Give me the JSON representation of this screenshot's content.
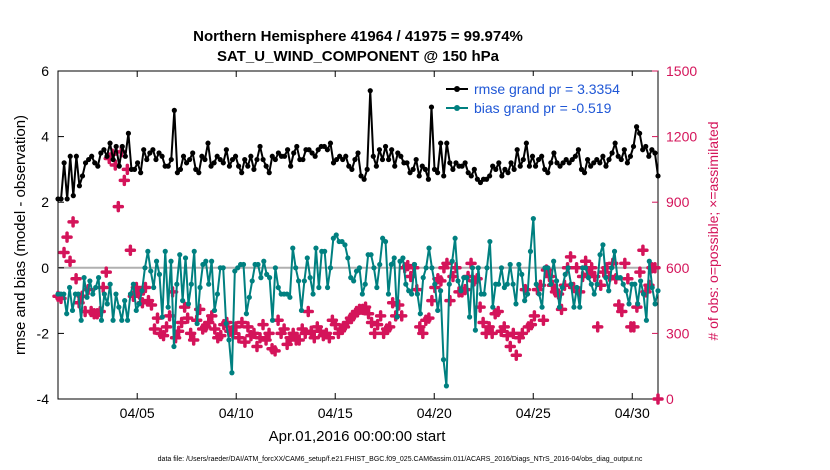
{
  "chart_data": {
    "type": "line",
    "title": "Northern Hemisphere 41964 / 41975 = 99.974%",
    "subtitle": "SAT_U_WIND_COMPONENT @ 150 hPa",
    "xlabel": "Apr.01,2016 00:00:00 start",
    "ylabel": "rmse and bias (model - observation)",
    "y2label": "# of obs: o=possible; ×=assimilated",
    "footer": "data file: /Users/raeder/DAI/ATM_forcXX/CAM6_setup/f.e21.FHIST_BGC.f09_025.CAM6assim.011/ACARS_2016/Diags_NTrS_2016-04/obs_diag_output.nc",
    "xlim": [
      1,
      31.3
    ],
    "ylim": [
      -4,
      6
    ],
    "y2lim": [
      0,
      1500
    ],
    "xticks": [
      5,
      10,
      15,
      20,
      25,
      30
    ],
    "xtick_labels": [
      "04/05",
      "04/10",
      "04/15",
      "04/20",
      "04/25",
      "04/30"
    ],
    "yticks": [
      -4,
      -2,
      0,
      2,
      4,
      6
    ],
    "ytick_labels": [
      "-4",
      "-2",
      "0",
      "2",
      "4",
      "6"
    ],
    "y2ticks": [
      0,
      300,
      600,
      900,
      1200,
      1500
    ],
    "y2tick_labels": [
      "0",
      "300",
      "600",
      "900",
      "1200",
      "1500"
    ],
    "series": [
      {
        "name": "rmse",
        "legend": "rmse grand pr = 3.3354",
        "color": "#000000",
        "values": [
          2.1,
          2.1,
          3.2,
          2.1,
          3.4,
          2.2,
          3.4,
          2.5,
          2.8,
          3.2,
          3.3,
          3.4,
          3.2,
          3.1,
          3.5,
          3.6,
          3.4,
          3.8,
          3.3,
          3.7,
          3.1,
          3.7,
          3.4,
          4.1,
          3.0,
          3.0,
          3.2,
          2.9,
          3.6,
          3.3,
          3.5,
          3.6,
          3.3,
          3.5,
          3.4,
          3.1,
          3.1,
          3.3,
          4.8,
          2.9,
          3.0,
          3.4,
          3.2,
          3.3,
          3.5,
          3.0,
          2.9,
          3.4,
          3.3,
          3.8,
          3.1,
          3.2,
          3.4,
          3.3,
          3.2,
          3.6,
          3.1,
          3.3,
          3.4,
          3.1,
          2.9,
          3.3,
          3.1,
          3.4,
          3.0,
          3.3,
          3.7,
          3.3,
          3.1,
          2.9,
          3.4,
          3.3,
          3.5,
          3.4,
          3.4,
          3.6,
          3.1,
          3.5,
          3.7,
          3.3,
          3.3,
          3.6,
          3.6,
          3.5,
          3.4,
          3.6,
          3.7,
          3.7,
          3.6,
          3.8,
          3.2,
          3.3,
          3.4,
          3.3,
          3.4,
          3.1,
          3.0,
          3.3,
          3.5,
          2.8,
          2.7,
          3.0,
          5.4,
          3.4,
          3.1,
          3.6,
          3.3,
          3.7,
          3.3,
          3.6,
          3.1,
          3.5,
          3.4,
          3.2,
          3.2,
          2.9,
          3.0,
          3.3,
          2.8,
          3.1,
          3.0,
          2.7,
          4.9,
          3.0,
          2.9,
          3.8,
          2.8,
          3.8,
          3.2,
          3.0,
          3.2,
          3.1,
          3.1,
          3.2,
          2.9,
          2.8,
          3.0,
          2.7,
          2.6,
          2.7,
          2.7,
          2.8,
          3.1,
          3.0,
          3.2,
          2.8,
          3.0,
          2.9,
          3.2,
          3.0,
          3.6,
          3.1,
          3.3,
          3.8,
          3.1,
          3.4,
          3.1,
          3.3,
          3.4,
          3.0,
          2.9,
          3.2,
          3.5,
          3.2,
          3.1,
          3.2,
          3.3,
          3.2,
          3.3,
          3.4,
          3.6,
          3.0,
          2.9,
          3.3,
          3.1,
          3.2,
          3.3,
          3.2,
          3.4,
          3.1,
          3.3,
          3.5,
          3.8,
          3.4,
          3.3,
          3.6,
          3.2,
          3.4,
          3.7,
          4.3,
          4.1,
          3.6,
          3.7,
          3.4,
          3.6,
          3.5,
          2.8
        ]
      },
      {
        "name": "bias",
        "legend": "bias grand pr = -0.519",
        "color": "#008080",
        "values": [
          -0.8,
          -0.8,
          -0.8,
          -1.4,
          -0.6,
          -1.3,
          -0.8,
          -0.8,
          -1.6,
          -0.3,
          -0.9,
          -0.4,
          -0.8,
          -0.6,
          -0.3,
          -1.6,
          -0.8,
          -1.1,
          -0.5,
          -1.6,
          -0.8,
          -1.2,
          -1.6,
          -1.0,
          -1.6,
          -0.8,
          -0.5,
          -1.3,
          -1.1,
          -0.7,
          0.0,
          0.5,
          -0.1,
          -0.6,
          0.2,
          -0.2,
          -1.5,
          0.5,
          -1.2,
          0.2,
          -2.4,
          -0.5,
          0.4,
          -1.0,
          0.3,
          -1.1,
          -0.5,
          0.5,
          -1.7,
          -0.6,
          0.1,
          0.2,
          -0.5,
          0.2,
          -1.3,
          -0.8,
          0.0,
          0.0,
          -1.7,
          -2.2,
          -3.2,
          -0.1,
          0.0,
          0.1,
          0.1,
          -1.4,
          -0.9,
          -0.4,
          0.1,
          0.1,
          -0.3,
          0.2,
          -0.2,
          -0.3,
          -1.6,
          0.0,
          -0.6,
          -0.8,
          -0.8,
          -0.8,
          -0.9,
          0.6,
          0.0,
          -0.4,
          -1.3,
          -0.4,
          0.3,
          -0.3,
          -0.8,
          0.6,
          -0.6,
          0.5,
          0.5,
          -0.6,
          0.0,
          0.9,
          1.0,
          0.8,
          0.8,
          0.7,
          0.3,
          -0.3,
          -0.4,
          -0.1,
          0.0,
          -0.8,
          -0.5,
          0.4,
          0.4,
          0.0,
          -0.6,
          0.1,
          0.9,
          0.8,
          -0.8,
          0.1,
          0.3,
          -1.5,
          0.2,
          0.3,
          -0.5,
          -0.7,
          -0.8,
          0.1,
          -0.8,
          -1.4,
          -0.3,
          0.0,
          0.6,
          0.0,
          -0.5,
          -1.3,
          -0.7,
          -2.8,
          -3.6,
          -0.5,
          0.2,
          0.9,
          -0.4,
          -0.7,
          -0.3,
          -0.3,
          -1.5,
          0.0,
          -1.9,
          0.0,
          -0.8,
          -0.8,
          0.0,
          0.8,
          -1.2,
          -0.5,
          -0.5,
          0.0,
          -0.6,
          -0.5,
          0.1,
          -0.5,
          -1.1,
          0.1,
          -0.2,
          -1.0,
          -0.8,
          0.5,
          1.5,
          -0.5,
          -0.8,
          -1.2,
          0.0,
          0.0,
          -0.5,
          0.2,
          -0.4,
          -1.2,
          -0.6,
          -0.2,
          0.0,
          -0.5,
          -1.2,
          -0.6,
          -1.2,
          0.0,
          0.0,
          -0.3,
          -0.5,
          -0.8,
          -0.5,
          0.4,
          0.7,
          -0.3,
          -0.7,
          0.0,
          0.5,
          -0.3,
          -0.3,
          -0.5,
          -0.7,
          -1.1,
          -0.5,
          -0.5,
          -1.1,
          -0.4,
          -0.8,
          -1.6,
          0.2,
          -0.6,
          -1.1,
          -0.7
        ]
      },
      {
        "name": "obs count",
        "color": "#d4145a",
        "axis": "right",
        "values": [
          470,
          460,
          670,
          740,
          630,
          810,
          550,
          440,
          470,
          400,
          500,
          400,
          390,
          390,
          400,
          510,
          580,
          1100,
          1120,
          1070,
          880,
          1130,
          1000,
          1050,
          680,
          470,
          510,
          480,
          440,
          510,
          450,
          430,
          320,
          370,
          300,
          290,
          330,
          380,
          490,
          280,
          310,
          350,
          420,
          370,
          300,
          270,
          360,
          410,
          320,
          330,
          350,
          380,
          320,
          280,
          290,
          340,
          350,
          310,
          300,
          330,
          280,
          350,
          260,
          330,
          290,
          300,
          240,
          280,
          340,
          270,
          300,
          230,
          220,
          360,
          300,
          320,
          250,
          280,
          300,
          270,
          270,
          320,
          300,
          400,
          310,
          280,
          330,
          310,
          290,
          300,
          280,
          360,
          340,
          300,
          320,
          330,
          350,
          370,
          380,
          400,
          410,
          410,
          420,
          390,
          350,
          300,
          340,
          380,
          300,
          320,
          330,
          440,
          380,
          430,
          380,
          600,
          610,
          560,
          600,
          500,
          330,
          300,
          360,
          370,
          450,
          510,
          550,
          540,
          600,
          620,
          450,
          560,
          600,
          490,
          490,
          500,
          560,
          620,
          540,
          550,
          420,
          350,
          300,
          330,
          300,
          390,
          400,
          310,
          330,
          290,
          240,
          300,
          200,
          280,
          300,
          500,
          330,
          340,
          380,
          500,
          520,
          360,
          590,
          560,
          520,
          490,
          480,
          410,
          520,
          600,
          650,
          510,
          600,
          490,
          560,
          630,
          570,
          600,
          560,
          330,
          520,
          580,
          600,
          560,
          620,
          550,
          430,
          400,
          620,
          550,
          330,
          330,
          420,
          580,
          680,
          490,
          520,
          600,
          600,
          0
        ]
      }
    ]
  }
}
